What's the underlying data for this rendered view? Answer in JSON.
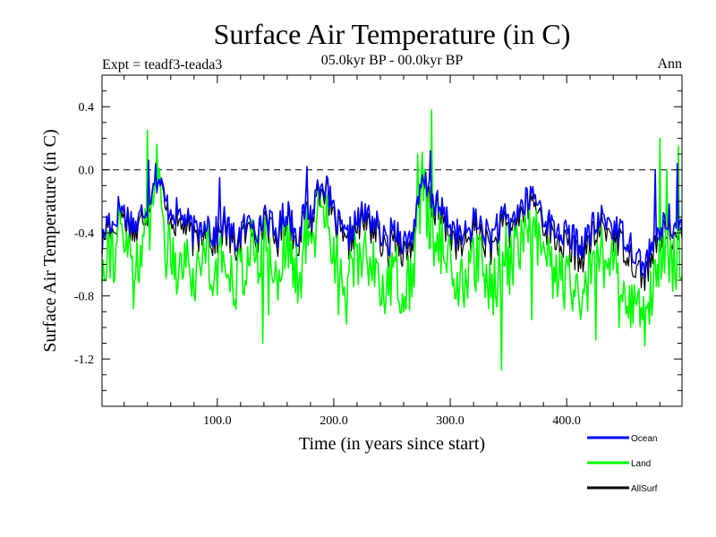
{
  "chart_data": {
    "type": "line",
    "title": "Surface Air Temperature (in C)",
    "subtitle": "05.0kyr BP - 00.0kyr BP",
    "experiment_label": "Expt = teadf3-teada3",
    "season_label": "Ann",
    "xlabel": "Time (in years since start)",
    "ylabel": "Surface Air Temperature (in C)",
    "xlim": [
      1,
      499
    ],
    "ylim": [
      -1.5,
      0.6
    ],
    "x_ticks": [
      100,
      200,
      300,
      400
    ],
    "x_tick_labels": [
      "100.0",
      "200.0",
      "300.0",
      "400.0"
    ],
    "y_ticks": [
      0.4,
      0.0,
      -0.4,
      -0.8,
      -1.2
    ],
    "y_tick_labels": [
      "0.4",
      "0.0",
      "-0.4",
      "-0.8",
      "-1.2"
    ],
    "reference_line": 0.0,
    "x_step": 5,
    "series": [
      {
        "name": "Ocean",
        "color": "#0000ff",
        "values": [
          -0.48,
          -0.3,
          -0.35,
          -0.22,
          -0.28,
          -0.32,
          -0.36,
          -0.25,
          -0.2,
          -0.02,
          -0.08,
          -0.22,
          -0.25,
          -0.28,
          -0.3,
          -0.35,
          -0.4,
          -0.36,
          -0.3,
          -0.42,
          -0.38,
          -0.32,
          -0.4,
          -0.45,
          -0.38,
          -0.35,
          -0.3,
          -0.4,
          -0.25,
          -0.35,
          -0.42,
          -0.3,
          -0.25,
          -0.38,
          -0.4,
          -0.22,
          -0.3,
          -0.1,
          -0.06,
          -0.18,
          -0.3,
          -0.38,
          -0.45,
          -0.36,
          -0.32,
          -0.28,
          -0.3,
          -0.34,
          -0.42,
          -0.48,
          -0.35,
          -0.4,
          -0.46,
          -0.42,
          -0.3,
          -0.08,
          -0.12,
          -0.2,
          -0.25,
          -0.3,
          -0.36,
          -0.4,
          -0.44,
          -0.38,
          -0.32,
          -0.35,
          -0.4,
          -0.42,
          -0.38,
          -0.3,
          -0.35,
          -0.28,
          -0.24,
          -0.2,
          -0.15,
          -0.22,
          -0.3,
          -0.35,
          -0.38,
          -0.4,
          -0.42,
          -0.44,
          -0.48,
          -0.45,
          -0.38,
          -0.35,
          -0.3,
          -0.32,
          -0.36,
          -0.4,
          -0.42,
          -0.48,
          -0.55,
          -0.62,
          -0.52,
          -0.45,
          -0.38,
          -0.3,
          -0.34,
          -0.4
        ],
        "highlights": [
          [
            41,
            0.06
          ],
          [
            102,
            -0.05
          ],
          [
            177,
            0.02
          ],
          [
            283,
            0.12
          ],
          [
            340,
            -0.28
          ],
          [
            362,
            -0.2
          ],
          [
            476,
            0.0
          ],
          [
            495,
            0.04
          ]
        ]
      },
      {
        "name": "Land",
        "color": "#00ff00",
        "values": [
          -0.62,
          -0.45,
          -0.55,
          -0.38,
          -0.48,
          -0.55,
          -0.58,
          -0.45,
          -0.42,
          0.05,
          -0.12,
          -0.5,
          -0.48,
          -0.62,
          -0.55,
          -0.6,
          -0.72,
          -0.58,
          -0.4,
          -0.68,
          -0.6,
          -0.58,
          -0.62,
          -0.7,
          -0.62,
          -0.58,
          -0.48,
          -0.65,
          -0.42,
          -0.55,
          -0.7,
          -0.5,
          -0.45,
          -0.66,
          -0.7,
          -0.42,
          -0.52,
          -0.28,
          -0.18,
          -0.38,
          -0.52,
          -0.62,
          -0.78,
          -0.62,
          -0.55,
          -0.5,
          -0.58,
          -0.6,
          -0.72,
          -0.82,
          -0.6,
          -0.7,
          -0.78,
          -0.72,
          -0.48,
          -0.05,
          -0.3,
          -0.42,
          -0.45,
          -0.55,
          -0.62,
          -0.7,
          -0.75,
          -0.66,
          -0.58,
          -0.62,
          -0.7,
          -0.75,
          -0.65,
          -0.5,
          -0.6,
          -0.5,
          -0.45,
          -0.4,
          -0.36,
          -0.48,
          -0.55,
          -0.62,
          -0.68,
          -0.7,
          -0.72,
          -0.78,
          -0.82,
          -0.78,
          -0.66,
          -0.62,
          -0.55,
          -0.58,
          -0.62,
          -0.7,
          -0.75,
          -0.82,
          -0.9,
          -0.95,
          -0.85,
          -0.72,
          -0.62,
          -0.5,
          -0.58,
          -0.65
        ],
        "highlights": [
          [
            28,
            -0.88
          ],
          [
            40,
            0.25
          ],
          [
            139,
            -1.1
          ],
          [
            144,
            -0.92
          ],
          [
            204,
            -0.92
          ],
          [
            272,
            0.1
          ],
          [
            284,
            0.38
          ],
          [
            344,
            -1.27
          ],
          [
            370,
            -0.95
          ],
          [
            425,
            -1.08
          ],
          [
            445,
            -1.0
          ],
          [
            480,
            0.2
          ],
          [
            486,
            0.0
          ],
          [
            496,
            0.15
          ]
        ]
      },
      {
        "name": "AllSurf",
        "color": "#000000",
        "values": [
          -0.5,
          -0.33,
          -0.4,
          -0.26,
          -0.32,
          -0.37,
          -0.41,
          -0.29,
          -0.25,
          -0.02,
          -0.09,
          -0.28,
          -0.3,
          -0.35,
          -0.35,
          -0.4,
          -0.47,
          -0.41,
          -0.33,
          -0.47,
          -0.42,
          -0.37,
          -0.45,
          -0.5,
          -0.43,
          -0.4,
          -0.34,
          -0.45,
          -0.29,
          -0.4,
          -0.47,
          -0.35,
          -0.3,
          -0.43,
          -0.45,
          -0.27,
          -0.35,
          -0.14,
          -0.09,
          -0.22,
          -0.35,
          -0.43,
          -0.51,
          -0.41,
          -0.37,
          -0.33,
          -0.36,
          -0.39,
          -0.48,
          -0.55,
          -0.41,
          -0.47,
          -0.53,
          -0.49,
          -0.34,
          -0.08,
          -0.16,
          -0.25,
          -0.3,
          -0.36,
          -0.42,
          -0.47,
          -0.51,
          -0.44,
          -0.38,
          -0.41,
          -0.47,
          -0.5,
          -0.45,
          -0.35,
          -0.41,
          -0.33,
          -0.29,
          -0.25,
          -0.2,
          -0.27,
          -0.35,
          -0.41,
          -0.45,
          -0.47,
          -0.49,
          -0.52,
          -0.56,
          -0.53,
          -0.45,
          -0.41,
          -0.36,
          -0.39,
          -0.43,
          -0.47,
          -0.5,
          -0.56,
          -0.63,
          -0.69,
          -0.6,
          -0.52,
          -0.44,
          -0.35,
          -0.4,
          -0.46
        ],
        "highlights": []
      }
    ]
  },
  "legend": {
    "items": [
      {
        "label": "Ocean",
        "color": "#0000ff"
      },
      {
        "label": "Land",
        "color": "#00ff00"
      },
      {
        "label": "AllSurf",
        "color": "#000000"
      }
    ]
  }
}
